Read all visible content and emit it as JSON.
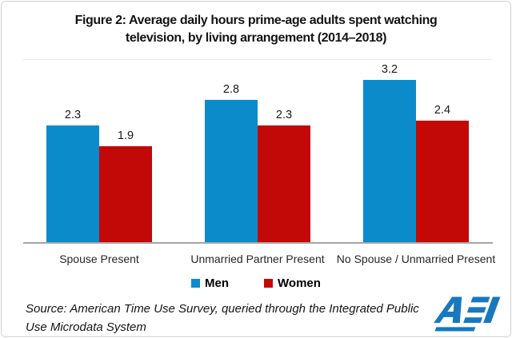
{
  "title": {
    "lines": [
      "Figure 2: Average daily hours prime-age adults spent watching",
      "television, by living arrangement (2014–2018)"
    ]
  },
  "chart_data": {
    "type": "bar",
    "title": "Figure 2: Average daily hours prime-age adults spent watching television, by living arrangement (2014–2018)",
    "categories": [
      "Spouse Present",
      "Unmarried Partner Present",
      "No Spouse / Unmarried Present"
    ],
    "series": [
      {
        "name": "Men",
        "color": "#0C8BCB",
        "values": [
          2.3,
          2.8,
          3.2
        ]
      },
      {
        "name": "Women",
        "color": "#C30808",
        "values": [
          1.9,
          2.3,
          2.4
        ]
      }
    ],
    "ylim": [
      0,
      3.6
    ],
    "xlabel": "",
    "ylabel": "",
    "grid": false,
    "data_labels": true,
    "legend_position": "bottom"
  },
  "source": {
    "text": "Source: American Time Use Survey, queried through the Integrated Public Use Microdata System"
  },
  "logo": {
    "text": "AEI",
    "color": "#1778BE"
  },
  "colors": {
    "axis": "#A5A5A5",
    "frame_border": "#D2D2D2"
  }
}
